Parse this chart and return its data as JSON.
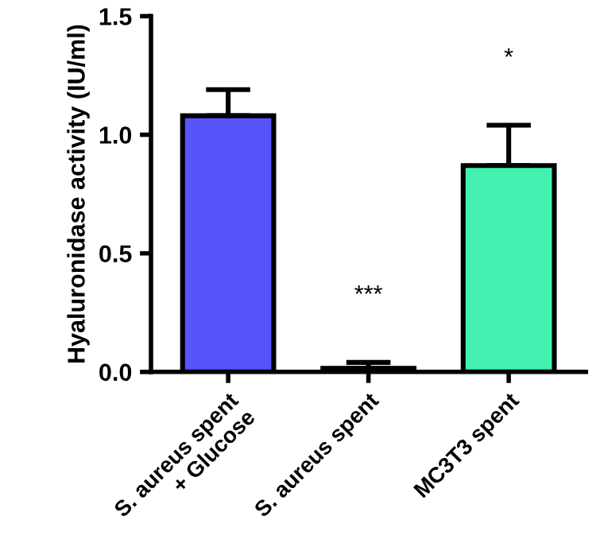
{
  "chart_data": {
    "type": "bar",
    "ylabel": "Hyaluronidase activity (IU/ml)",
    "categories": [
      "S. aureus spent\n+ Glucose",
      "S. aureus spent",
      "MC3T3 spent"
    ],
    "values": [
      1.08,
      0.015,
      0.87
    ],
    "errors": [
      0.11,
      0.025,
      0.17
    ],
    "colors": [
      "#5555fa",
      "#333333",
      "#44f0b0"
    ],
    "ylim": [
      0,
      1.5
    ],
    "yticks": [
      {
        "value": 0,
        "label": "0.0"
      },
      {
        "value": 0.5,
        "label": "0.5"
      },
      {
        "value": 1,
        "label": "1.0"
      },
      {
        "value": 1.5,
        "label": "1.5"
      }
    ],
    "grid": false,
    "annotations": [
      "***",
      "*"
    ]
  }
}
